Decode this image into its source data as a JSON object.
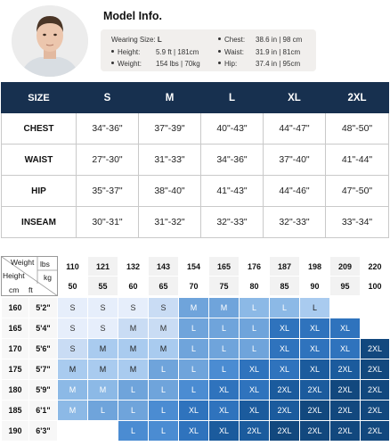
{
  "model": {
    "title": "Model Info.",
    "wearing_label": "Wearing Size:",
    "wearing_value": "L",
    "left": [
      {
        "label": "Height:",
        "value": "5.9  ft  | 181cm"
      },
      {
        "label": "Weight:",
        "value": "154 lbs | 70kg"
      }
    ],
    "right": [
      {
        "label": "Chest:",
        "value": "38.6 in | 98 cm"
      },
      {
        "label": "Waist:",
        "value": "31.9  in | 81cm"
      },
      {
        "label": "Hip:",
        "value": "37.4 in | 95cm"
      }
    ]
  },
  "size_table": {
    "corner": "SIZE",
    "sizes": [
      "S",
      "M",
      "L",
      "XL",
      "2XL"
    ],
    "rows": [
      {
        "label": "CHEST",
        "values": [
          "34\"-36\"",
          "37\"-39\"",
          "40\"-43\"",
          "44\"-47\"",
          "48\"-50\""
        ]
      },
      {
        "label": "WAIST",
        "values": [
          "27\"-30\"",
          "31\"-33\"",
          "34\"-36\"",
          "37\"-40\"",
          "41\"-44\""
        ]
      },
      {
        "label": "HIP",
        "values": [
          "35\"-37\"",
          "38\"-40\"",
          "41\"-43\"",
          "44\"-46\"",
          "47\"-50\""
        ]
      },
      {
        "label": "INSEAM",
        "values": [
          "30\"-31\"",
          "31\"-32\"",
          "32\"-33\"",
          "32\"-33\"",
          "33\"-34\""
        ]
      }
    ]
  },
  "grid": {
    "corner_weight": "Weight",
    "corner_lbs": "lbs",
    "corner_kg": "kg",
    "corner_height": "Height",
    "corner_cm": "cm",
    "corner_ft": "ft",
    "lbs": [
      "110",
      "121",
      "132",
      "143",
      "154",
      "165",
      "176",
      "187",
      "198",
      "209",
      "220"
    ],
    "kg": [
      "50",
      "55",
      "60",
      "65",
      "70",
      "75",
      "80",
      "85",
      "90",
      "95",
      "100"
    ],
    "rows": [
      {
        "cm": "160",
        "ft": "5'2\"",
        "cells": [
          "S",
          "S",
          "S",
          "S",
          "M",
          "M",
          "L",
          "L",
          "L",
          "",
          ""
        ]
      },
      {
        "cm": "165",
        "ft": "5'4\"",
        "cells": [
          "S",
          "S",
          "M",
          "M",
          "L",
          "L",
          "L",
          "XL",
          "XL",
          "XL",
          ""
        ]
      },
      {
        "cm": "170",
        "ft": "5'6\"",
        "cells": [
          "S",
          "M",
          "M",
          "M",
          "L",
          "L",
          "L",
          "XL",
          "XL",
          "XL",
          "2XL"
        ]
      },
      {
        "cm": "175",
        "ft": "5'7\"",
        "cells": [
          "M",
          "M",
          "M",
          "L",
          "L",
          "L",
          "XL",
          "XL",
          "XL",
          "2XL",
          "2XL"
        ]
      },
      {
        "cm": "180",
        "ft": "5'9\"",
        "cells": [
          "M",
          "M",
          "L",
          "L",
          "L",
          "XL",
          "XL",
          "2XL",
          "2XL",
          "2XL",
          "2XL"
        ]
      },
      {
        "cm": "185",
        "ft": "6'1\"",
        "cells": [
          "M",
          "L",
          "L",
          "L",
          "XL",
          "XL",
          "XL",
          "2XL",
          "2XL",
          "2XL",
          "2XL"
        ]
      },
      {
        "cm": "190",
        "ft": "6'3\"",
        "cells": [
          "",
          "",
          "L",
          "L",
          "XL",
          "XL",
          "2XL",
          "2XL",
          "2XL",
          "2XL",
          "2XL"
        ]
      }
    ],
    "shades": [
      [
        1,
        1,
        1,
        2,
        5,
        5,
        4,
        4,
        3,
        0,
        0
      ],
      [
        1,
        1,
        2,
        2,
        5,
        5,
        5,
        7,
        7,
        7,
        0
      ],
      [
        2,
        3,
        3,
        3,
        5,
        5,
        5,
        7,
        7,
        7,
        9
      ],
      [
        3,
        3,
        3,
        5,
        5,
        6,
        7,
        7,
        8,
        8,
        9
      ],
      [
        4,
        4,
        5,
        5,
        6,
        7,
        7,
        8,
        8,
        9,
        9
      ],
      [
        4,
        5,
        5,
        6,
        7,
        7,
        8,
        8,
        9,
        9,
        9
      ],
      [
        0,
        0,
        6,
        6,
        7,
        8,
        8,
        9,
        9,
        9,
        9
      ]
    ]
  }
}
